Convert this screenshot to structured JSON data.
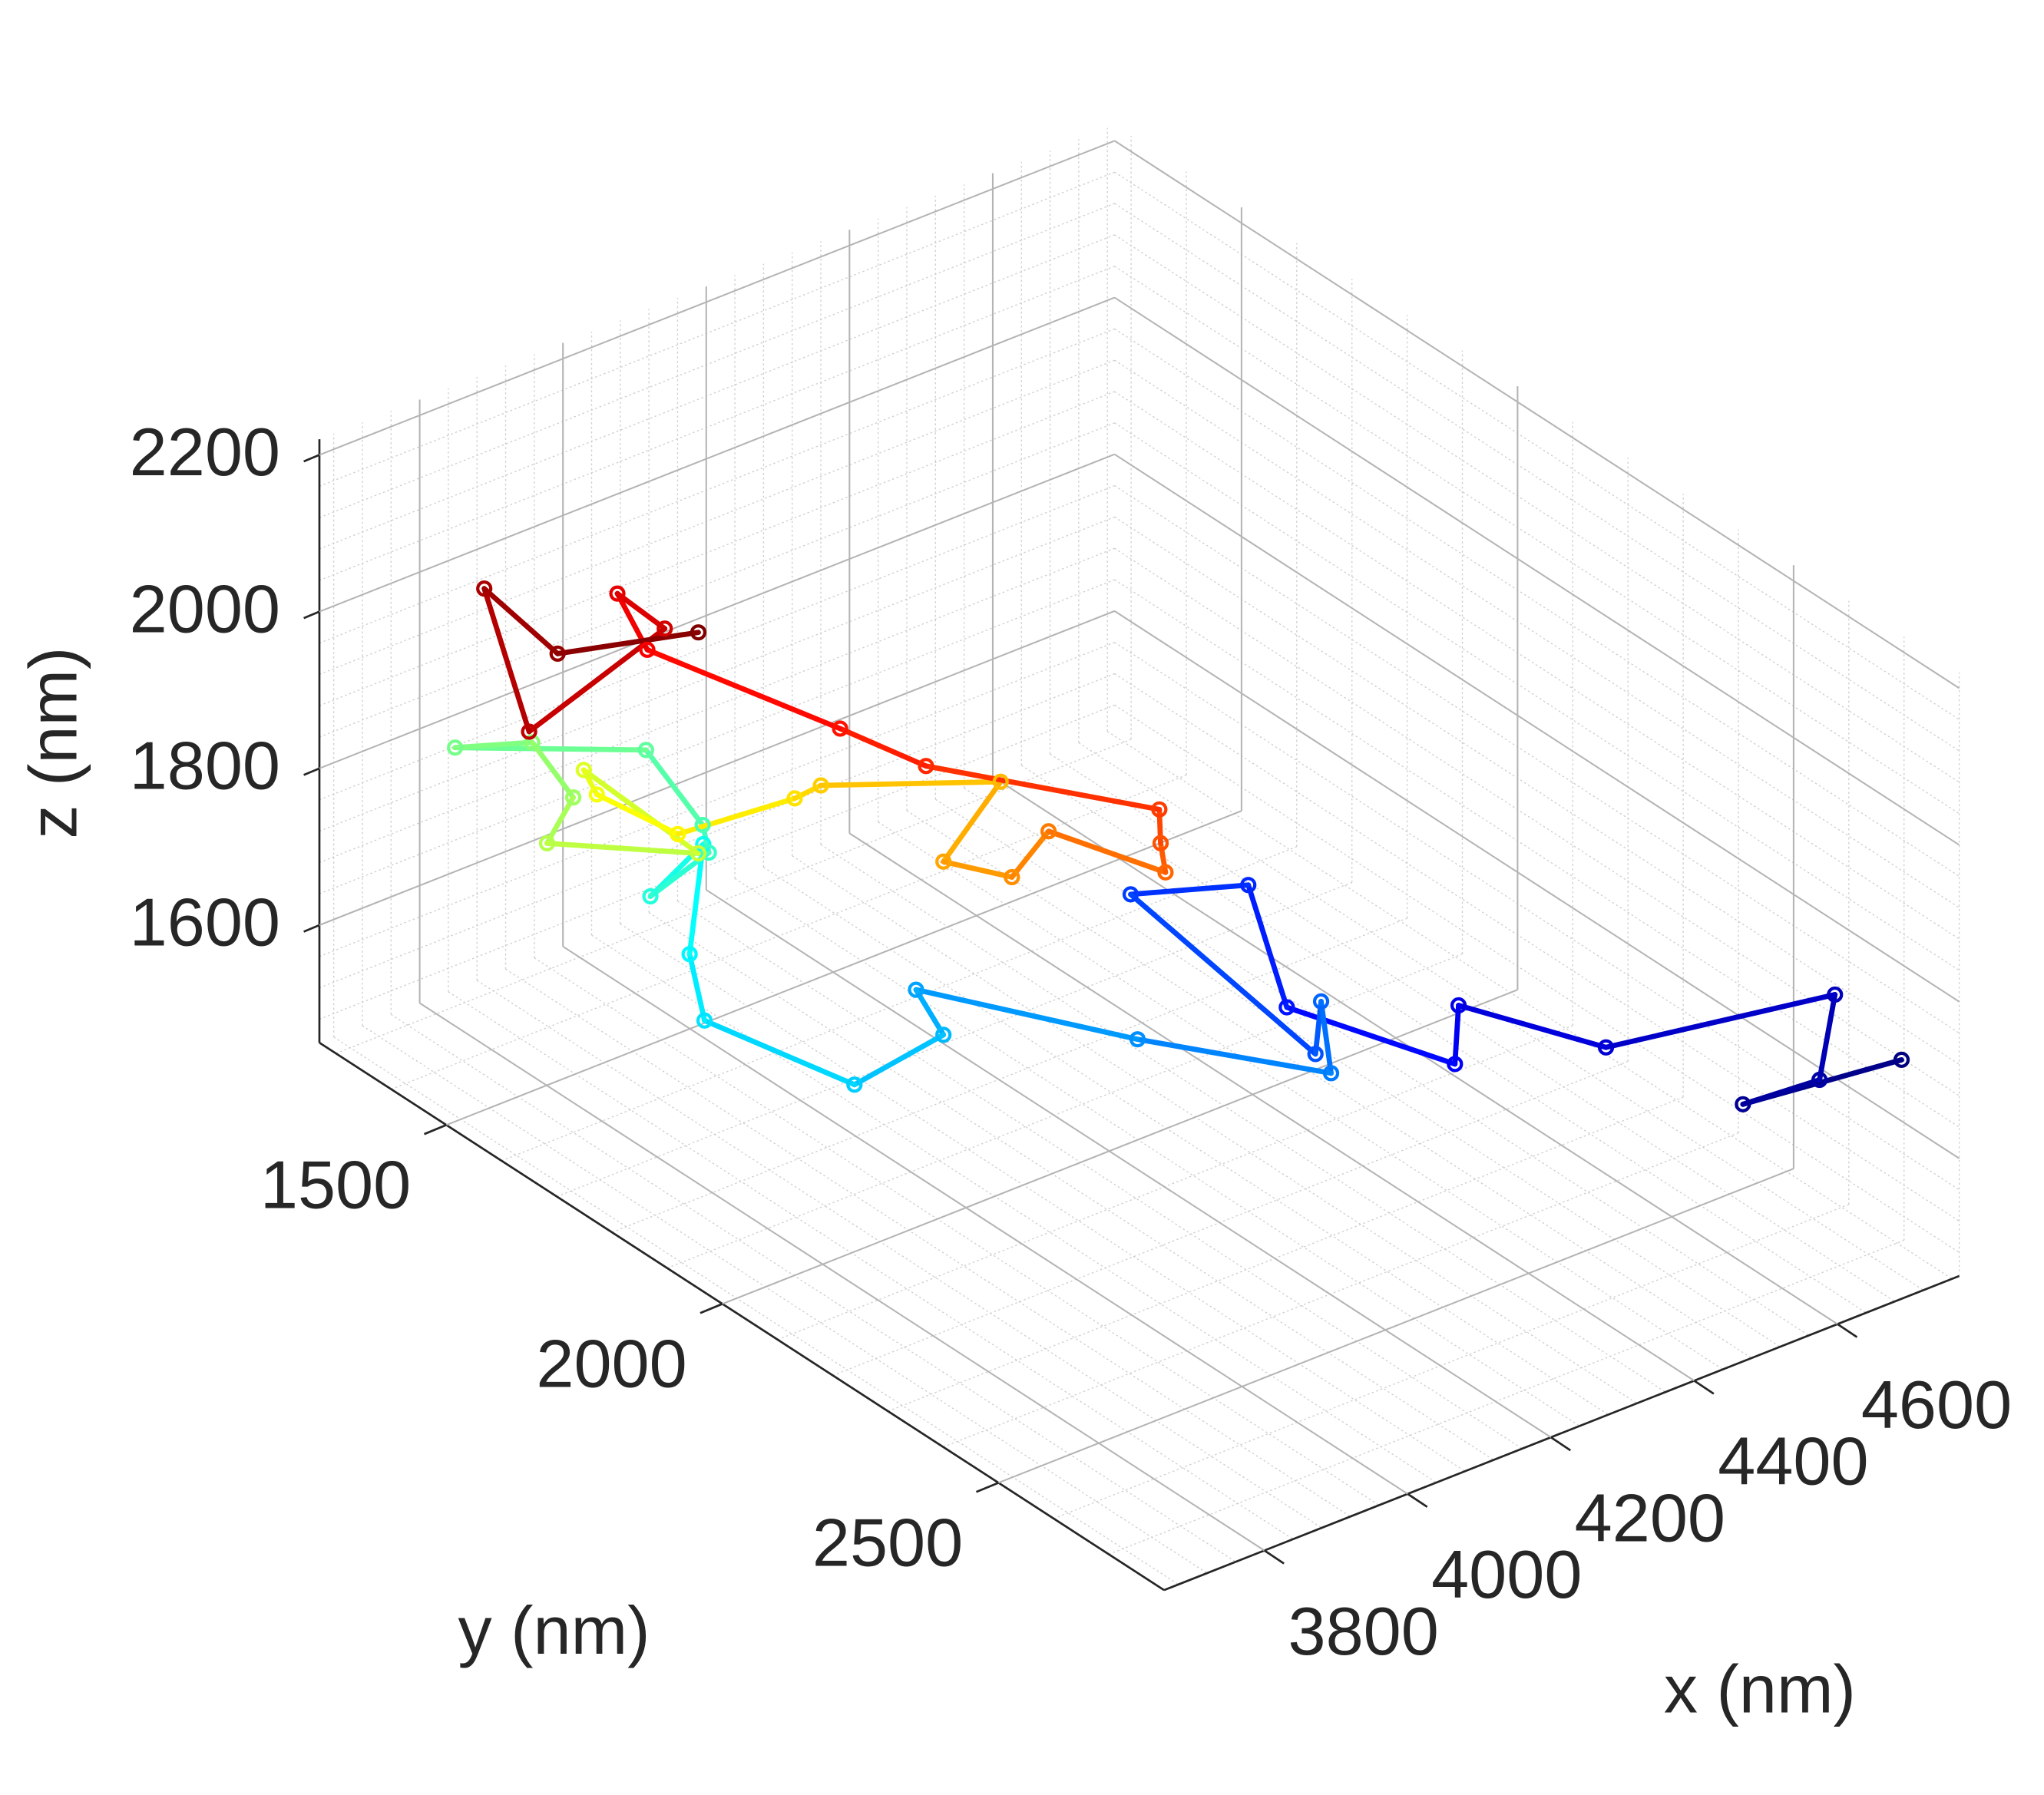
{
  "chart_data": {
    "type": "line3d",
    "x_label": "x (nm)",
    "y_label": "y (nm)",
    "z_label": "z (nm)",
    "x": [
      4745,
      4636,
      4689,
      4699,
      4542,
      4441,
      4439,
      4323,
      4297,
      4216,
      4343,
      4347,
      4354,
      4221,
      4069,
      4088,
      4027,
      3924,
      3914,
      3923,
      3887,
      3927,
      3923,
      3884,
      3753,
      3806,
      3834,
      3816,
      3920,
      3841,
      3850,
      3906,
      3986,
      4004,
      4127,
      4088,
      4135,
      4160,
      4240,
      4237,
      4236,
      4076,
      4017,
      3885,
      3864,
      3897,
      3804,
      3773,
      3823,
      3920
    ],
    "y": [
      2728,
      2582,
      2652,
      2667,
      2456,
      2320,
      2316,
      2162,
      2126,
      2018,
      2188,
      2193,
      2202,
      2024,
      1820,
      1845,
      1763,
      1625,
      1611,
      1624,
      1575,
      1629,
      1623,
      1571,
      1395,
      1466,
      1504,
      1480,
      1619,
      1514,
      1526,
      1600,
      1708,
      1732,
      1898,
      1845,
      1908,
      1942,
      2050,
      2045,
      2044,
      1829,
      1750,
      1572,
      1545,
      1588,
      1463,
      1422,
      1490,
      1619
    ],
    "z": [
      1702,
      1618,
      1662,
      1774,
      1667,
      1695,
      1619,
      1663,
      1812,
      1780,
      1608,
      1676,
      1586,
      1596,
      1621,
      1568,
      1489,
      1545,
      1627,
      1770,
      1694,
      1760,
      1794,
      1880,
      1850,
      1870,
      1807,
      1744,
      1757,
      1844,
      1815,
      1778,
      1844,
      1865,
      1901,
      1789,
      1781,
      1846,
      1814,
      1850,
      1893,
      1908,
      1941,
      2008,
      2075,
      2038,
      1883,
      2058,
      1988,
      2039
    ],
    "xlim": [
      3660,
      4770
    ],
    "ylim": [
      1270,
      2800
    ],
    "zlim": [
      1450,
      2220
    ],
    "xticks": [
      3800,
      4000,
      4200,
      4400,
      4600
    ],
    "yticks": [
      1500,
      2000,
      2500
    ],
    "zticks": [
      1600,
      1800,
      2000,
      2200
    ],
    "grid": true,
    "minor_grid": true,
    "colormap": "jet",
    "marker": "o"
  }
}
